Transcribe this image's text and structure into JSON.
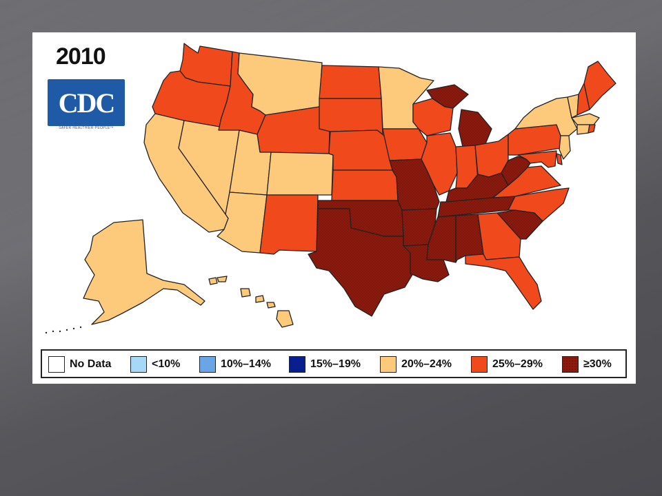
{
  "title": "2010",
  "logo": {
    "text": "CDC",
    "tagline": "SAFER·HEALTHIER·PEOPLE™"
  },
  "colors": {
    "no_data": "#ffffff",
    "lt10": "#a6d8f7",
    "c10_14": "#6aa6e6",
    "c15_19": "#0a1f8f",
    "c20_24": "#fdca7c",
    "c25_29": "#f04a1c",
    "c30": "#8c1a0e",
    "border": "#222222"
  },
  "legend": [
    {
      "label": "No Data",
      "color_key": "no_data"
    },
    {
      "label": "<10%",
      "color_key": "lt10"
    },
    {
      "label": "10%–14%",
      "color_key": "c10_14"
    },
    {
      "label": "15%–19%",
      "color_key": "c15_19"
    },
    {
      "label": "20%–24%",
      "color_key": "c20_24"
    },
    {
      "label": "25%–29%",
      "color_key": "c25_29"
    },
    {
      "label": "≥30%",
      "color_key": "c30"
    }
  ],
  "states": [
    {
      "id": "WA",
      "category": "c25_29"
    },
    {
      "id": "OR",
      "category": "c25_29"
    },
    {
      "id": "CA",
      "category": "c20_24"
    },
    {
      "id": "NV",
      "category": "c20_24"
    },
    {
      "id": "ID",
      "category": "c25_29"
    },
    {
      "id": "MT",
      "category": "c20_24"
    },
    {
      "id": "WY",
      "category": "c25_29"
    },
    {
      "id": "UT",
      "category": "c20_24"
    },
    {
      "id": "AZ",
      "category": "c20_24"
    },
    {
      "id": "CO",
      "category": "c20_24"
    },
    {
      "id": "NM",
      "category": "c25_29"
    },
    {
      "id": "ND",
      "category": "c25_29"
    },
    {
      "id": "SD",
      "category": "c25_29"
    },
    {
      "id": "NE",
      "category": "c25_29"
    },
    {
      "id": "KS",
      "category": "c25_29"
    },
    {
      "id": "OK",
      "category": "c30"
    },
    {
      "id": "TX",
      "category": "c30"
    },
    {
      "id": "MN",
      "category": "c20_24"
    },
    {
      "id": "IA",
      "category": "c25_29"
    },
    {
      "id": "MO",
      "category": "c30"
    },
    {
      "id": "AR",
      "category": "c30"
    },
    {
      "id": "LA",
      "category": "c30"
    },
    {
      "id": "WI",
      "category": "c25_29"
    },
    {
      "id": "IL",
      "category": "c25_29"
    },
    {
      "id": "MI",
      "category": "c30"
    },
    {
      "id": "IN",
      "category": "c25_29"
    },
    {
      "id": "OH",
      "category": "c25_29"
    },
    {
      "id": "KY",
      "category": "c30"
    },
    {
      "id": "TN",
      "category": "c30"
    },
    {
      "id": "MS",
      "category": "c30"
    },
    {
      "id": "AL",
      "category": "c30"
    },
    {
      "id": "GA",
      "category": "c25_29"
    },
    {
      "id": "FL",
      "category": "c25_29"
    },
    {
      "id": "SC",
      "category": "c30"
    },
    {
      "id": "NC",
      "category": "c25_29"
    },
    {
      "id": "VA",
      "category": "c25_29"
    },
    {
      "id": "WV",
      "category": "c30"
    },
    {
      "id": "PA",
      "category": "c25_29"
    },
    {
      "id": "NY",
      "category": "c20_24"
    },
    {
      "id": "NJ",
      "category": "c20_24"
    },
    {
      "id": "DE",
      "category": "c25_29"
    },
    {
      "id": "MD",
      "category": "c25_29"
    },
    {
      "id": "VT",
      "category": "c20_24"
    },
    {
      "id": "NH",
      "category": "c25_29"
    },
    {
      "id": "ME",
      "category": "c25_29"
    },
    {
      "id": "MA",
      "category": "c20_24"
    },
    {
      "id": "CT",
      "category": "c20_24"
    },
    {
      "id": "RI",
      "category": "c25_29"
    },
    {
      "id": "AK",
      "category": "c20_24"
    },
    {
      "id": "HI",
      "category": "c20_24"
    }
  ]
}
